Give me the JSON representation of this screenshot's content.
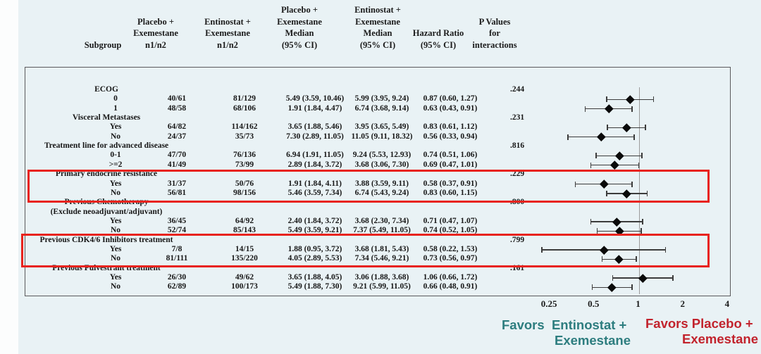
{
  "colors": {
    "background": "#e9f2f5",
    "highlight_box": "#e8231d",
    "favors_left": "#2d7d7f",
    "favors_right": "#c2232d",
    "marker": "#0a0a0a"
  },
  "chart_data": {
    "type": "forest",
    "x_scale": "log",
    "x_ticks": [
      "0.25",
      "0.5",
      "1",
      "2",
      "4"
    ],
    "reference_line": 1,
    "columns": [
      "Subgroup",
      "Placebo +\nExemestane\nn1/n2",
      "Entinostat +\nExemestane\nn1/n2",
      "Placebo +\nExemestane\nMedian\n(95% CI)",
      "Entinostat +\nExemestane\nMedian\n(95% CI)",
      "Hazard Ratio\n(95% CI)",
      "P Values\nfor\ninteractions"
    ],
    "groups": [
      {
        "label": "ECOG",
        "p_value": ".244",
        "rows": [
          {
            "label": "0",
            "placebo_n": "40/61",
            "entinostat_n": "81/129",
            "placebo_median": "5.49 (3.59, 10.46)",
            "entinostat_median": "5.99 (3.95, 9.24)",
            "hr_text": "0.87 (0.60, 1.27)",
            "hr": 0.87,
            "ci": [
              0.6,
              1.27
            ]
          },
          {
            "label": "1",
            "placebo_n": "48/58",
            "entinostat_n": "68/106",
            "placebo_median": "1.91 (1.84, 4.47)",
            "entinostat_median": "6.74 (3.68, 9.14)",
            "hr_text": "0.63 (0.43, 0.91)",
            "hr": 0.63,
            "ci": [
              0.43,
              0.91
            ]
          }
        ]
      },
      {
        "label": "Visceral Metastases",
        "p_value": ".231",
        "rows": [
          {
            "label": "Yes",
            "placebo_n": "64/82",
            "entinostat_n": "114/162",
            "placebo_median": "3.65 (1.88, 5.46)",
            "entinostat_median": "3.95 (3.65, 5.49)",
            "hr_text": "0.83 (0.61, 1.12)",
            "hr": 0.83,
            "ci": [
              0.61,
              1.12
            ]
          },
          {
            "label": "No",
            "placebo_n": "24/37",
            "entinostat_n": "35/73",
            "placebo_median": "7.30 (2.89, 11.05)",
            "entinostat_median": "11.05 (9.11, 18.32)",
            "hr_text": "0.56 (0.33, 0.94)",
            "hr": 0.56,
            "ci": [
              0.33,
              0.94
            ]
          }
        ]
      },
      {
        "label": "Treatment line for advanced disease",
        "p_value": ".816",
        "rows": [
          {
            "label": "0-1",
            "placebo_n": "47/70",
            "entinostat_n": "76/136",
            "placebo_median": "6.94 (1.91, 11.05)",
            "entinostat_median": "9.24 (5.53, 12.93)",
            "hr_text": "0.74 (0.51, 1.06)",
            "hr": 0.74,
            "ci": [
              0.51,
              1.06
            ]
          },
          {
            "label": ">=2",
            "placebo_n": "41/49",
            "entinostat_n": "73/99",
            "placebo_median": "2.89 (1.84, 3.72)",
            "entinostat_median": "3.68 (3.06, 7.30)",
            "hr_text": "0.69 (0.47, 1.01)",
            "hr": 0.69,
            "ci": [
              0.47,
              1.01
            ]
          }
        ]
      },
      {
        "label": "Primary endocrine resistance",
        "p_value": ".229",
        "highlighted": true,
        "rows": [
          {
            "label": "Yes",
            "placebo_n": "31/37",
            "entinostat_n": "50/76",
            "placebo_median": "1.91 (1.84, 4.11)",
            "entinostat_median": "3.88 (3.59, 9.11)",
            "hr_text": "0.58 (0.37, 0.91)",
            "hr": 0.58,
            "ci": [
              0.37,
              0.91
            ]
          },
          {
            "label": "No",
            "placebo_n": "56/81",
            "entinostat_n": "98/156",
            "placebo_median": "5.46 (3.59, 7.34)",
            "entinostat_median": "6.74 (5.43, 9.24)",
            "hr_text": "0.83 (0.60, 1.15)",
            "hr": 0.83,
            "ci": [
              0.6,
              1.15
            ]
          }
        ]
      },
      {
        "label": "Previous Chemotherapy",
        "label2": "(Exclude neoadjuvant/adjuvant)",
        "p_value": ".800",
        "rows": [
          {
            "label": "Yes",
            "placebo_n": "36/45",
            "entinostat_n": "64/92",
            "placebo_median": "2.40 (1.84, 3.72)",
            "entinostat_median": "3.68 (2.30, 7.34)",
            "hr_text": "0.71 (0.47, 1.07)",
            "hr": 0.71,
            "ci": [
              0.47,
              1.07
            ]
          },
          {
            "label": "No",
            "placebo_n": "52/74",
            "entinostat_n": "85/143",
            "placebo_median": "5.49 (3.59, 9.21)",
            "entinostat_median": "7.37 (5.49, 11.05)",
            "hr_text": "0.74 (0.52, 1.05)",
            "hr": 0.74,
            "ci": [
              0.52,
              1.05
            ]
          }
        ]
      },
      {
        "label": "Previous CDK4/6 Inhibitors treatment",
        "p_value": ".799",
        "highlighted": true,
        "rows": [
          {
            "label": "Yes",
            "placebo_n": "7/8",
            "entinostat_n": "14/15",
            "placebo_median": "1.88 (0.95, 3.72)",
            "entinostat_median": "3.68 (1.81, 5.43)",
            "hr_text": "0.58 (0.22, 1.53)",
            "hr": 0.58,
            "ci": [
              0.22,
              1.53
            ]
          },
          {
            "label": "No",
            "placebo_n": "81/111",
            "entinostat_n": "135/220",
            "placebo_median": "4.05 (2.89, 5.53)",
            "entinostat_median": "7.34 (5.46, 9.21)",
            "hr_text": "0.73 (0.56, 0.97)",
            "hr": 0.73,
            "ci": [
              0.56,
              0.97
            ]
          }
        ]
      },
      {
        "label": "Previous Fulvestrant treatment",
        "p_value": ".161",
        "rows": [
          {
            "label": "Yes",
            "placebo_n": "26/30",
            "entinostat_n": "49/62",
            "placebo_median": "3.65 (1.88, 4.05)",
            "entinostat_median": "3.06 (1.88, 3.68)",
            "hr_text": "1.06 (0.66, 1.72)",
            "hr": 1.06,
            "ci": [
              0.66,
              1.72
            ]
          },
          {
            "label": "No",
            "placebo_n": "62/89",
            "entinostat_n": "100/173",
            "placebo_median": "5.49 (1.88, 7.30)",
            "entinostat_median": "9.21 (5.99, 11.05)",
            "hr_text": "0.66 (0.48, 0.91)",
            "hr": 0.66,
            "ci": [
              0.48,
              0.91
            ]
          }
        ]
      }
    ],
    "highlighted_groups": [
      "Primary endocrine resistance",
      "Previous CDK4/6 Inhibitors treatment"
    ],
    "favors": {
      "left_line1": "Favors  Entinostat +",
      "left_line2": "Exemestane",
      "right_line1": "Favors Placebo +",
      "right_line2": "Exemestane"
    }
  }
}
